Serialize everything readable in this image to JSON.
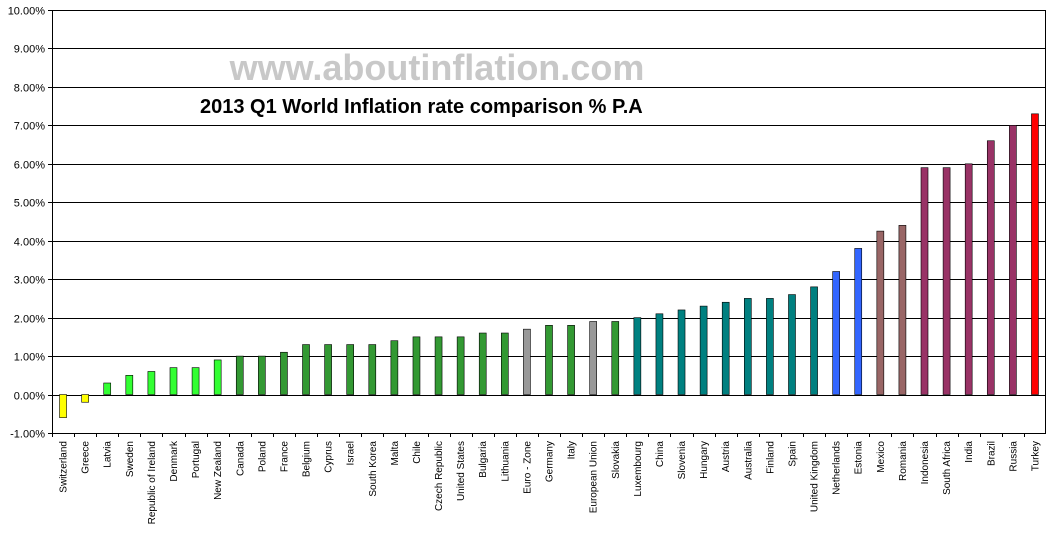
{
  "watermark": "www.aboutinflation.com",
  "chart_data": {
    "type": "bar",
    "title": "2013 Q1 World Inflation rate comparison % P.A",
    "xlabel": "",
    "ylabel": "",
    "ylim": [
      -1,
      10
    ],
    "y_ticks": [
      "-1.00%",
      "0.00%",
      "1.00%",
      "2.00%",
      "3.00%",
      "4.00%",
      "5.00%",
      "6.00%",
      "7.00%",
      "8.00%",
      "9.00%",
      "10.00%"
    ],
    "y_tick_values": [
      -1,
      0,
      1,
      2,
      3,
      4,
      5,
      6,
      7,
      8,
      9,
      10
    ],
    "grid": true,
    "legend": "none",
    "categories": [
      "Switzerland",
      "Greece",
      "Latvia",
      "Sweden",
      "Republic of Ireland",
      "Denmark",
      "Portugal",
      "New Zealand",
      "Canada",
      "Poland",
      "France",
      "Belgium",
      "Cyprus",
      "Israel",
      "South Korea",
      "Malta",
      "Chile",
      "Czech Republic",
      "United States",
      "Bulgaria",
      "Lithuania",
      "Euro - Zone",
      "Germany",
      "Italy",
      "European Union",
      "Slovakia",
      "Luxembourg",
      "China",
      "Slovenia",
      "Hungary",
      "Austria",
      "Australia",
      "Finland",
      "Spain",
      "United Kingdom",
      "Netherlands",
      "Estonia",
      "Mexico",
      "Romania",
      "Indonesia",
      "South Africa",
      "India",
      "Brazil",
      "Russia",
      "Turkey"
    ],
    "values": [
      -0.6,
      -0.2,
      0.3,
      0.5,
      0.6,
      0.7,
      0.7,
      0.9,
      1.0,
      1.0,
      1.1,
      1.3,
      1.3,
      1.3,
      1.3,
      1.4,
      1.5,
      1.5,
      1.5,
      1.6,
      1.6,
      1.7,
      1.8,
      1.8,
      1.9,
      1.9,
      2.0,
      2.1,
      2.2,
      2.3,
      2.4,
      2.5,
      2.5,
      2.6,
      2.8,
      3.2,
      3.8,
      4.25,
      4.4,
      5.9,
      5.9,
      6.0,
      6.6,
      7.0,
      7.3
    ],
    "colors": [
      "#ffff00",
      "#ffff00",
      "#33ff33",
      "#33ff33",
      "#33ff33",
      "#33ff33",
      "#33ff33",
      "#33ff33",
      "#339933",
      "#339933",
      "#339933",
      "#339933",
      "#339933",
      "#339933",
      "#339933",
      "#339933",
      "#339933",
      "#339933",
      "#339933",
      "#339933",
      "#339933",
      "#999999",
      "#339933",
      "#339933",
      "#999999",
      "#339933",
      "#008080",
      "#008080",
      "#008080",
      "#008080",
      "#008080",
      "#008080",
      "#008080",
      "#008080",
      "#008080",
      "#3366ff",
      "#3366ff",
      "#996666",
      "#996666",
      "#993366",
      "#993366",
      "#993366",
      "#993366",
      "#993366",
      "#ff0000"
    ]
  }
}
